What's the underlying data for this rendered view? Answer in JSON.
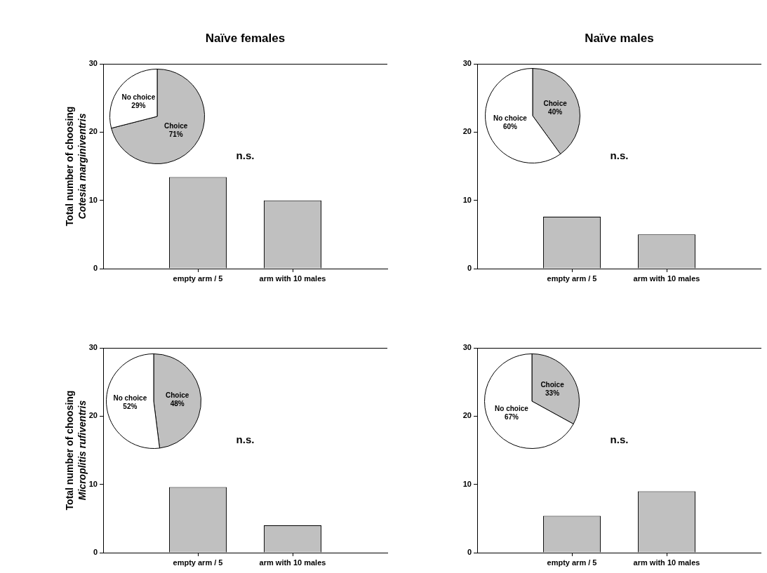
{
  "chart_data": [
    {
      "type": "bar",
      "title": "Naïve females",
      "ylabel": "Total number of choosing\nCotesia marginiventris",
      "categories": [
        "empty arm / 5",
        "arm with 10 males"
      ],
      "values": [
        13.4,
        10
      ],
      "color": "#c0c0c0",
      "ylim": [
        0,
        30
      ],
      "yticks": [
        0,
        10,
        20,
        30
      ],
      "annotations": [
        "n.s."
      ]
    },
    {
      "type": "pie",
      "categories": [
        "Choice",
        "No choice"
      ],
      "values": [
        71,
        29
      ],
      "colors": [
        "#c0c0c0",
        "#ffffff"
      ],
      "value_labels": [
        "71%",
        "29%"
      ]
    },
    {
      "type": "bar",
      "title": "Naïve males",
      "categories": [
        "empty arm / 5",
        "arm with 10 males"
      ],
      "values": [
        7.6,
        5
      ],
      "color": "#c0c0c0",
      "ylim": [
        0,
        30
      ],
      "yticks": [
        0,
        10,
        20,
        30
      ],
      "annotations": [
        "n.s."
      ]
    },
    {
      "type": "pie",
      "categories": [
        "Choice",
        "No choice"
      ],
      "values": [
        40,
        60
      ],
      "colors": [
        "#c0c0c0",
        "#ffffff"
      ],
      "value_labels": [
        "40%",
        "60%"
      ]
    },
    {
      "type": "bar",
      "ylabel": "Total number of choosing\nMicroplitis rufiventris",
      "categories": [
        "empty arm / 5",
        "arm with 10 males"
      ],
      "values": [
        9.6,
        4
      ],
      "color": "#c0c0c0",
      "ylim": [
        0,
        30
      ],
      "yticks": [
        0,
        10,
        20,
        30
      ],
      "annotations": [
        "n.s."
      ]
    },
    {
      "type": "pie",
      "categories": [
        "Choice",
        "No choice"
      ],
      "values": [
        48,
        52
      ],
      "colors": [
        "#c0c0c0",
        "#ffffff"
      ],
      "value_labels": [
        "48%",
        "52%"
      ]
    },
    {
      "type": "bar",
      "categories": [
        "empty arm / 5",
        "arm with 10 males"
      ],
      "values": [
        5.4,
        9
      ],
      "color": "#c0c0c0",
      "ylim": [
        0,
        30
      ],
      "yticks": [
        0,
        10,
        20,
        30
      ],
      "annotations": [
        "n.s."
      ]
    },
    {
      "type": "pie",
      "categories": [
        "Choice",
        "No choice"
      ],
      "values": [
        33,
        67
      ],
      "colors": [
        "#c0c0c0",
        "#ffffff"
      ],
      "value_labels": [
        "33%",
        "67%"
      ]
    }
  ]
}
